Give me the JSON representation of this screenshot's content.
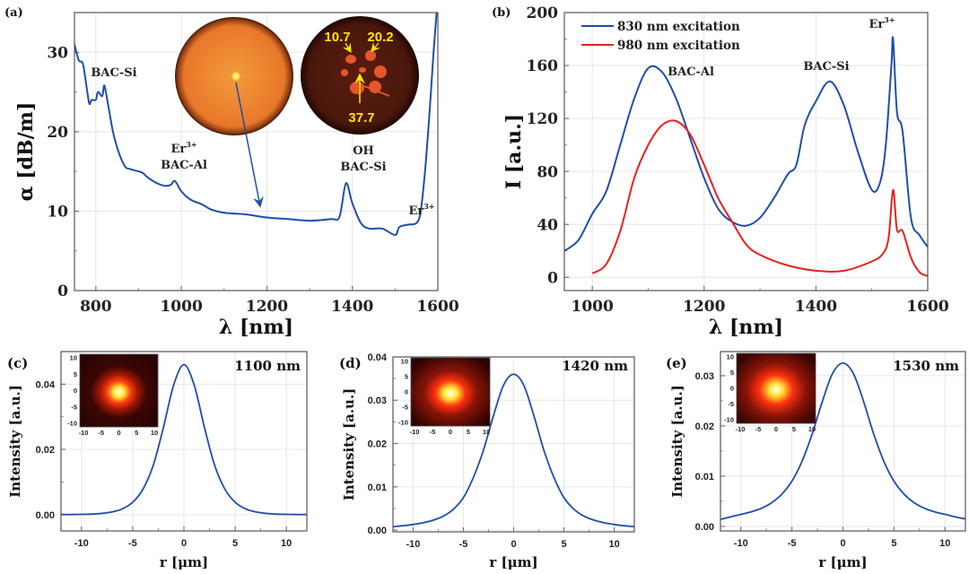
{
  "chart_data": [
    {
      "panel": "(a)",
      "type": "line",
      "xlabel": "λ [nm]",
      "ylabel": "α [dB/m]",
      "xlim": [
        750,
        1600
      ],
      "ylim": [
        0,
        35
      ],
      "xticks": [
        "800",
        "1000",
        "1200",
        "1400",
        "1600"
      ],
      "yticks": [
        "0",
        "10",
        "20",
        "30"
      ],
      "grid": true,
      "series": [
        {
          "name": "attenuation",
          "color": "#1f4fa8",
          "x": [
            750,
            760,
            770,
            780,
            785,
            790,
            800,
            805,
            815,
            820,
            830,
            840,
            850,
            860,
            870,
            880,
            900,
            910,
            920,
            940,
            960,
            975,
            985,
            1000,
            1020,
            1050,
            1070,
            1100,
            1150,
            1200,
            1250,
            1300,
            1350,
            1370,
            1385,
            1400,
            1420,
            1440,
            1470,
            1500,
            1510,
            1530,
            1550,
            1560,
            1570,
            1580,
            1590,
            1597
          ],
          "y": [
            31,
            29,
            28.5,
            25,
            23.5,
            24,
            24,
            25,
            24.5,
            25.8,
            23,
            20,
            18,
            16.5,
            15.5,
            15.3,
            15,
            14.8,
            14.3,
            13.6,
            13.2,
            13.3,
            13.8,
            12.5,
            11.5,
            10.8,
            10.2,
            9.8,
            9.6,
            9.2,
            9.0,
            8.8,
            9.0,
            9.3,
            13.5,
            11.0,
            8.5,
            7.8,
            7.8,
            7.0,
            8.0,
            8.3,
            8.5,
            10,
            15,
            22,
            30,
            35
          ]
        }
      ],
      "annotations": [
        {
          "lines": [
            {
              "text": "BAC-Si"
            }
          ]
        },
        {
          "lines": [
            {
              "text": "Er",
              "sup": "3+"
            },
            {
              "text": "BAC-Al"
            }
          ]
        },
        {
          "lines": [
            {
              "text": "OH"
            },
            {
              "text": "BAC-Si"
            }
          ]
        },
        {
          "lines": [
            {
              "text": "Er",
              "sup": "3+"
            }
          ]
        }
      ],
      "photo_labels": [
        "10.7",
        "20.2",
        "37.7"
      ]
    },
    {
      "panel": "(b)",
      "type": "line",
      "xlabel": "λ [nm]",
      "ylabel": "I [a.u.]",
      "xlim": [
        950,
        1600
      ],
      "ylim": [
        -10,
        200
      ],
      "xticks": [
        "1000",
        "1200",
        "1400",
        "1600"
      ],
      "yticks": [
        "0",
        "40",
        "80",
        "120",
        "160",
        "200"
      ],
      "grid": true,
      "legend": "top-left",
      "series": [
        {
          "name": "830 nm excitation",
          "color": "#1f4fa8",
          "x": [
            950,
            975,
            1000,
            1025,
            1050,
            1075,
            1100,
            1125,
            1150,
            1175,
            1200,
            1225,
            1250,
            1275,
            1300,
            1325,
            1350,
            1365,
            1380,
            1400,
            1425,
            1450,
            1475,
            1500,
            1515,
            1525,
            1535,
            1538,
            1545,
            1555,
            1570,
            1585,
            1600
          ],
          "y": [
            20,
            28,
            48,
            65,
            100,
            135,
            158,
            155,
            135,
            105,
            75,
            52,
            42,
            39,
            45,
            60,
            78,
            85,
            115,
            133,
            148,
            130,
            95,
            66,
            72,
            100,
            160,
            180,
            125,
            110,
            45,
            32,
            23
          ]
        },
        {
          "name": "980 nm excitation",
          "color": "#e8201e",
          "x": [
            1000,
            1025,
            1050,
            1075,
            1100,
            1125,
            1150,
            1175,
            1200,
            1225,
            1250,
            1275,
            1300,
            1350,
            1400,
            1450,
            1500,
            1520,
            1530,
            1538,
            1545,
            1555,
            1570,
            1585,
            1600
          ],
          "y": [
            3,
            10,
            35,
            75,
            100,
            115,
            118,
            108,
            85,
            60,
            42,
            25,
            17,
            9,
            5,
            5,
            12,
            18,
            30,
            66,
            36,
            35,
            15,
            4,
            1
          ]
        }
      ],
      "annotations": [
        {
          "lines": [
            {
              "text": "BAC-Al"
            }
          ]
        },
        {
          "lines": [
            {
              "text": "BAC-Si"
            }
          ]
        },
        {
          "lines": [
            {
              "text": "Er",
              "sup": "3+"
            }
          ]
        }
      ]
    },
    {
      "panel": "(c)",
      "type": "line",
      "title": "1100 nm",
      "xlabel": "r [μm]",
      "ylabel": "Intensity [a.u.]",
      "xlim": [
        -12,
        12
      ],
      "ylim": [
        -0.005,
        0.05
      ],
      "xticks": [
        "-10",
        "-5",
        "0",
        "5",
        "10"
      ],
      "yticks": [
        "0.00",
        "0.02",
        "0.04"
      ],
      "grid": true,
      "series": [
        {
          "name": "mode profile",
          "color": "#1f4fa8",
          "x": [
            -12,
            -11,
            -10,
            -9,
            -8,
            -7,
            -6,
            -5,
            -4,
            -3,
            -2,
            -1,
            0,
            1,
            2,
            3,
            4,
            5,
            6,
            7,
            8,
            9,
            10,
            11,
            12
          ],
          "y": [
            2e-05,
            4e-05,
            8e-05,
            0.00018,
            0.00039,
            0.00084,
            0.0018,
            0.0038,
            0.0078,
            0.0151,
            0.0268,
            0.0398,
            0.046,
            0.0398,
            0.0268,
            0.0151,
            0.0078,
            0.0038,
            0.0018,
            0.00084,
            0.00039,
            0.00018,
            8e-05,
            4e-05,
            2e-05
          ]
        }
      ],
      "inset_ticks": [
        "-10",
        "-5",
        "0",
        "5",
        "10"
      ]
    },
    {
      "panel": "(d)",
      "type": "line",
      "title": "1420 nm",
      "xlabel": "r [μm]",
      "ylabel": "Intensity [a.u.]",
      "xlim": [
        -12,
        12
      ],
      "ylim": [
        -0.0004,
        0.04
      ],
      "xticks": [
        "-10",
        "-5",
        "0",
        "5",
        "10"
      ],
      "yticks": [
        "0.00",
        "0.01",
        "0.02",
        "0.03",
        "0.04"
      ],
      "grid": true,
      "series": [
        {
          "name": "mode profile",
          "color": "#1f4fa8",
          "x": [
            -12,
            -11,
            -10,
            -9,
            -8,
            -7,
            -6,
            -5,
            -4,
            -3,
            -2,
            -1,
            0,
            1,
            2,
            3,
            4,
            5,
            6,
            7,
            8,
            9,
            10,
            11,
            12
          ],
          "y": [
            0.0008,
            0.001,
            0.0013,
            0.0017,
            0.0023,
            0.0032,
            0.0048,
            0.0075,
            0.0122,
            0.0185,
            0.0265,
            0.0335,
            0.036,
            0.0335,
            0.0265,
            0.0185,
            0.0122,
            0.0075,
            0.0048,
            0.0032,
            0.0023,
            0.0017,
            0.0013,
            0.001,
            0.0008
          ]
        }
      ],
      "inset_ticks": [
        "-10",
        "-5",
        "0",
        "5",
        "10"
      ]
    },
    {
      "panel": "(e)",
      "type": "line",
      "title": "1530 nm",
      "xlabel": "r [μm]",
      "ylabel": "Intensity [a.u.]",
      "xlim": [
        -12,
        12
      ],
      "ylim": [
        -0.0009,
        0.0348
      ],
      "xticks": [
        "-10",
        "-5",
        "0",
        "5",
        "10"
      ],
      "yticks": [
        "0.00",
        "0.01",
        "0.02",
        "0.03"
      ],
      "grid": true,
      "series": [
        {
          "name": "mode profile",
          "color": "#1f4fa8",
          "x": [
            -12,
            -11,
            -10,
            -9,
            -8,
            -7,
            -6,
            -5,
            -4,
            -3,
            -2,
            -1,
            0,
            1,
            2,
            3,
            4,
            5,
            6,
            7,
            8,
            9,
            10,
            11,
            12
          ],
          "y": [
            0.0014,
            0.0019,
            0.0024,
            0.0029,
            0.0036,
            0.0047,
            0.0064,
            0.009,
            0.013,
            0.0185,
            0.025,
            0.0305,
            0.0325,
            0.0305,
            0.025,
            0.0185,
            0.013,
            0.009,
            0.0064,
            0.0047,
            0.0036,
            0.0029,
            0.0024,
            0.0019,
            0.0015
          ]
        }
      ],
      "inset_ticks": [
        "-10",
        "-5",
        "0",
        "5",
        "10"
      ]
    }
  ]
}
